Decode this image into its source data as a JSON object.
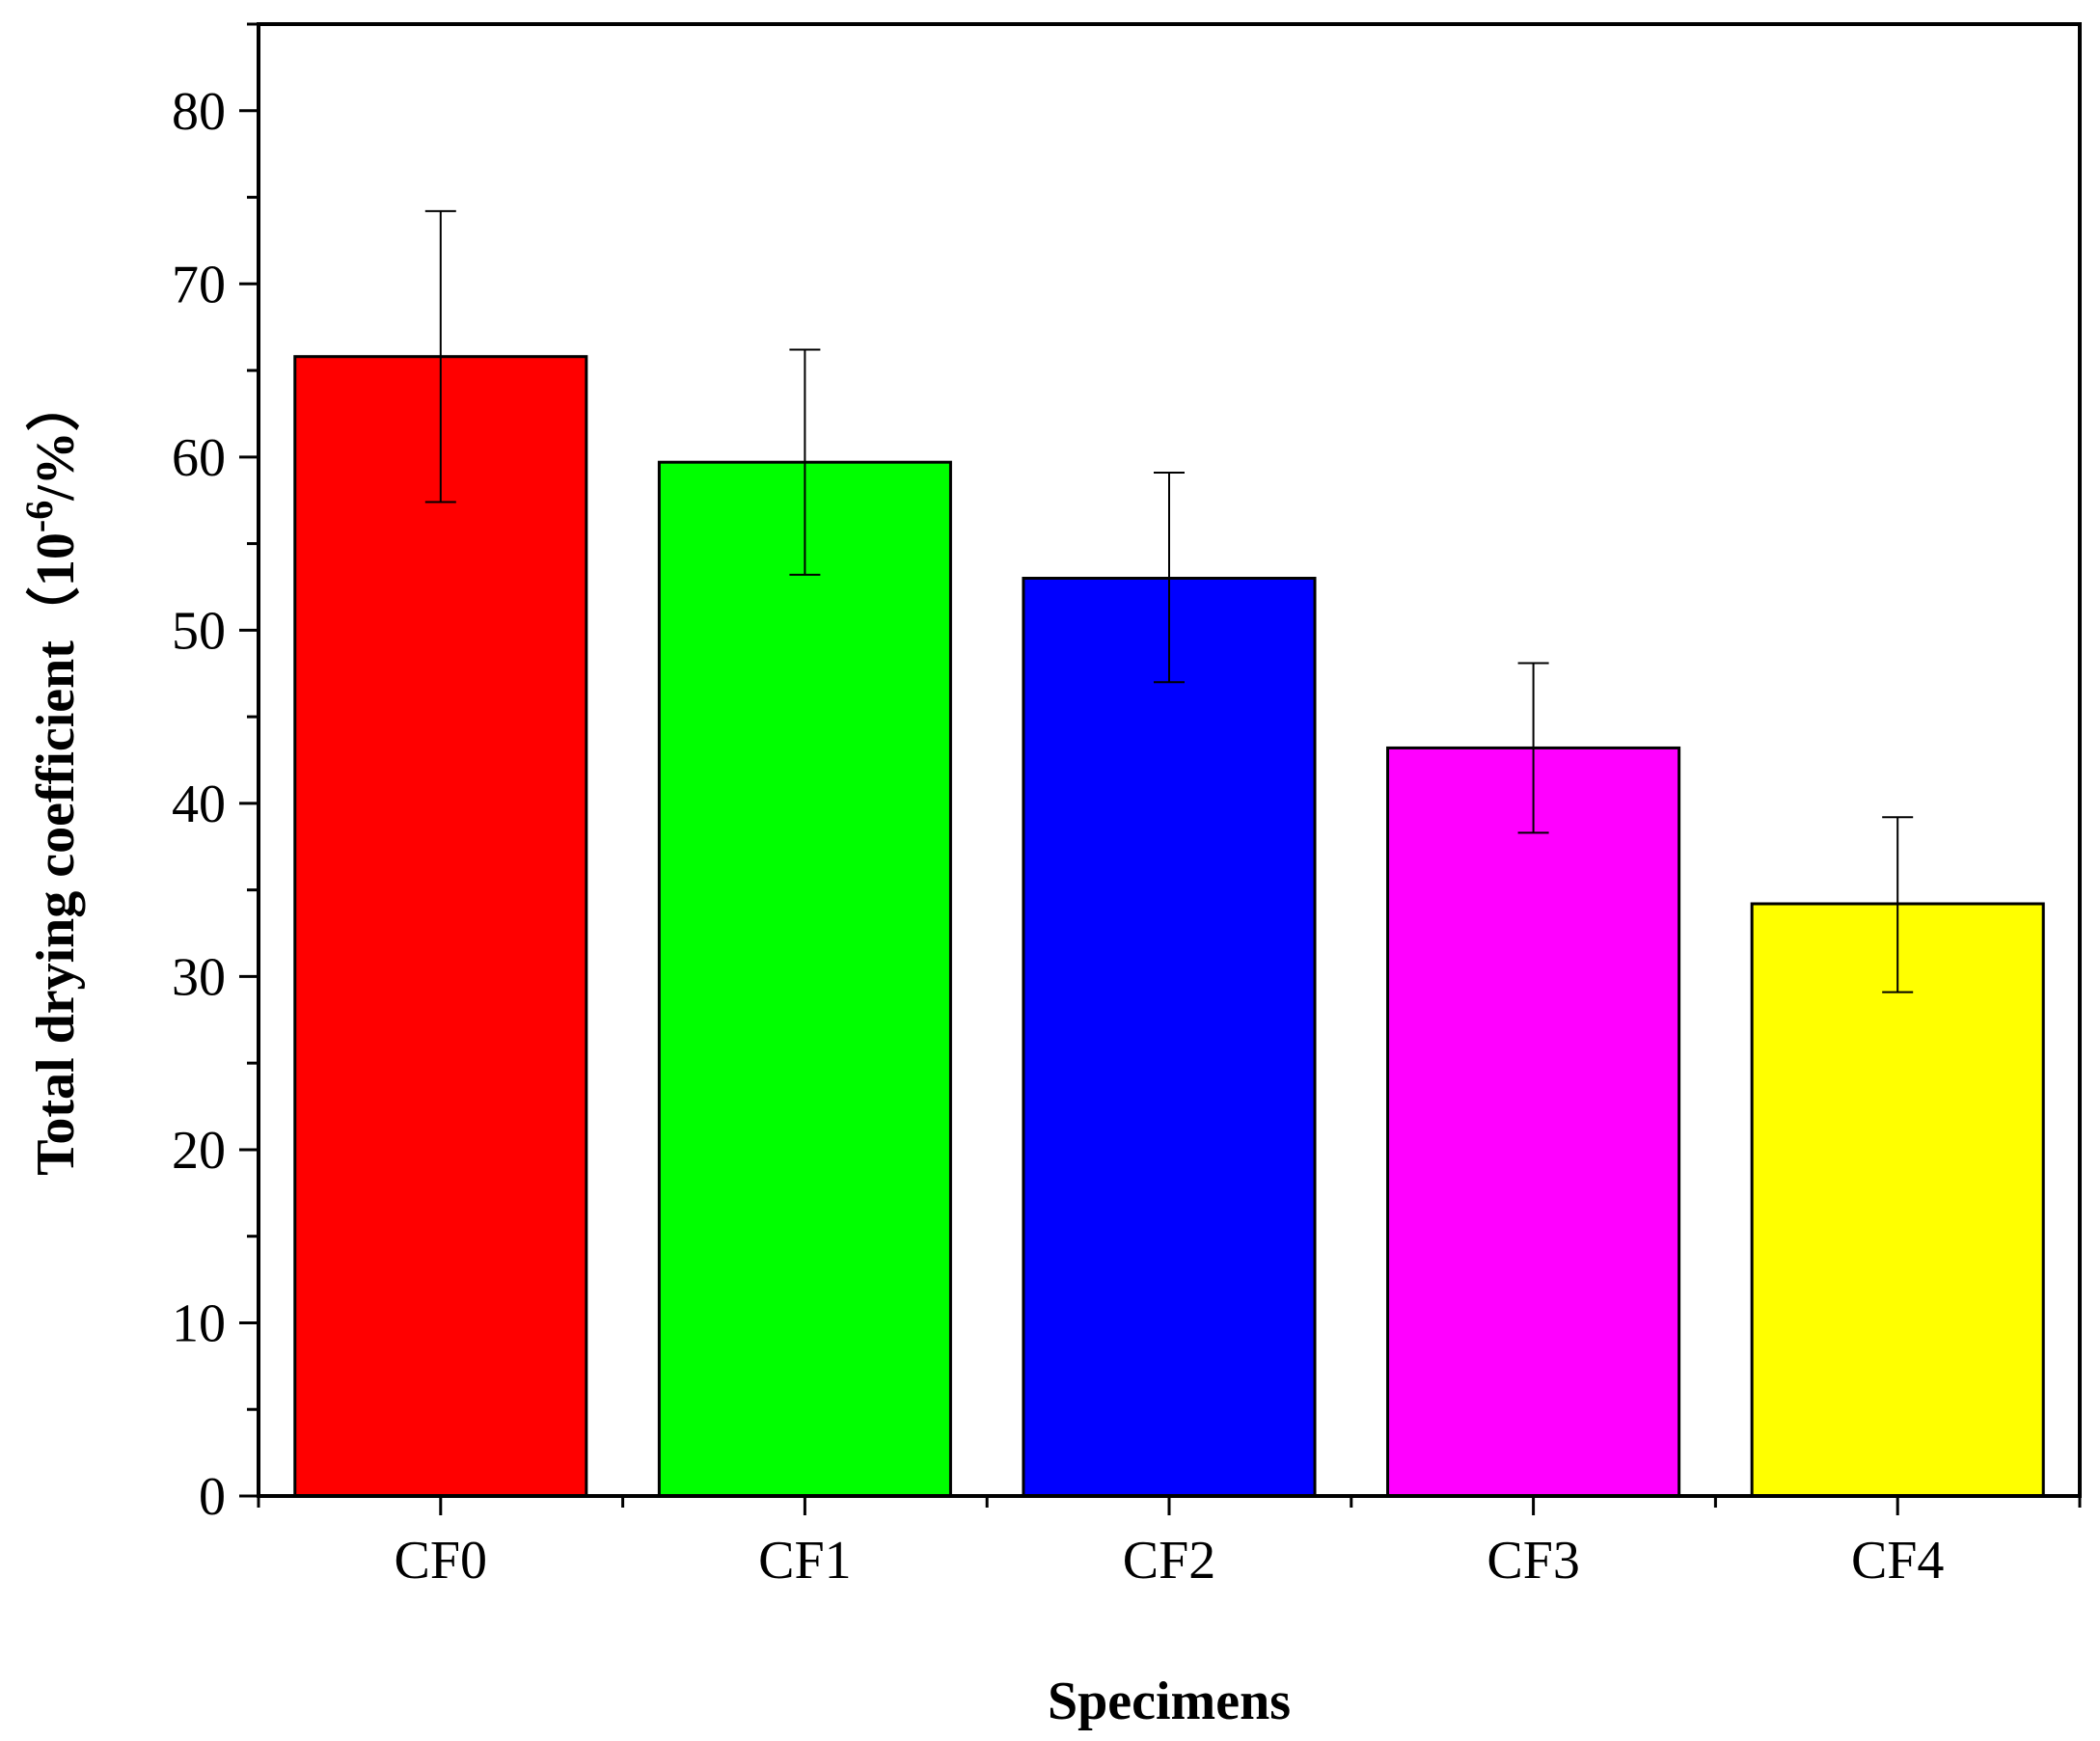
{
  "chart_data": {
    "type": "bar",
    "title": "",
    "xlabel": "Specimens",
    "ylabel": {
      "main": "Total drying coefficient（",
      "base": "10",
      "exponent": "-6",
      "unit": "/%）"
    },
    "categories": [
      "CF0",
      "CF1",
      "CF2",
      "CF3",
      "CF4"
    ],
    "values": [
      65.8,
      59.7,
      53.0,
      43.2,
      34.2
    ],
    "error_low": [
      57.4,
      53.2,
      47.0,
      38.3,
      29.1
    ],
    "error_high": [
      74.2,
      66.2,
      59.1,
      48.1,
      39.2
    ],
    "colors": [
      "#ff0000",
      "#00ff00",
      "#0000ff",
      "#ff00ff",
      "#ffff00"
    ],
    "ylim": [
      0,
      85
    ],
    "yticks": [
      0,
      10,
      20,
      30,
      40,
      50,
      60,
      70,
      80
    ],
    "ytick_labels": [
      "0",
      "10",
      "20",
      "30",
      "40",
      "50",
      "60",
      "70",
      "80"
    ],
    "grid": false,
    "legend": "none"
  }
}
